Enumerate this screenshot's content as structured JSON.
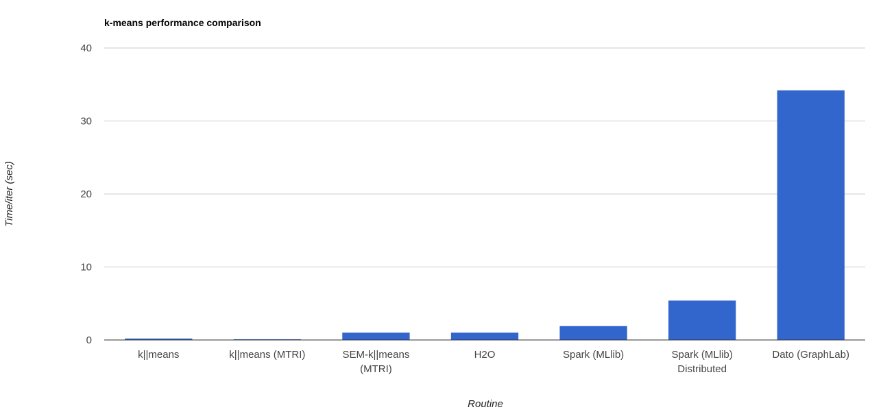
{
  "chart_data": {
    "type": "bar",
    "title": "k-means performance comparison",
    "xlabel": "Routine",
    "ylabel": "Time/iter (sec)",
    "ylim": [
      0,
      40
    ],
    "yticks": [
      "0",
      "10",
      "20",
      "30",
      "40"
    ],
    "grid": true,
    "categories": [
      [
        "k||means"
      ],
      [
        "k||means (MTRI)"
      ],
      [
        "SEM-k||means",
        "(MTRI)"
      ],
      [
        "H2O"
      ],
      [
        "Spark (MLlib)"
      ],
      [
        "Spark (MLlib)",
        "Distributed"
      ],
      [
        "Dato (GraphLab)"
      ]
    ],
    "values": [
      0.2,
      0.1,
      1.0,
      1.0,
      1.9,
      5.4,
      34.2
    ],
    "bar_color": "#3366cc"
  }
}
